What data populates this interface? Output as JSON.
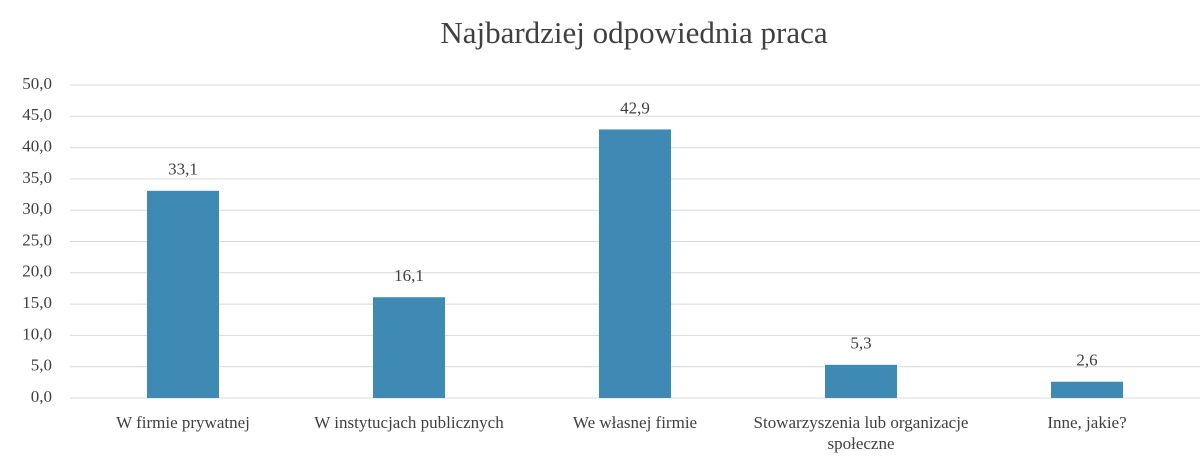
{
  "chart_data": {
    "type": "bar",
    "title": "Najbardziej odpowiednia praca",
    "categories": [
      "W firmie prywatnej",
      "W instytucjach publicznych",
      "We własnej firmie",
      "Stowarzyszenia lub organizacje społeczne",
      "Inne, jakie?"
    ],
    "values": [
      33.1,
      16.1,
      42.9,
      5.3,
      2.6
    ],
    "value_labels": [
      "33,1",
      "16,1",
      "42,9",
      "5,3",
      "2,6"
    ],
    "color": "#3f8ab5",
    "ylim": [
      0,
      50
    ],
    "yticks": [
      {
        "value": 0,
        "label": "0,0"
      },
      {
        "value": 5,
        "label": "5,0"
      },
      {
        "value": 10,
        "label": "10,0"
      },
      {
        "value": 15,
        "label": "15,0"
      },
      {
        "value": 20,
        "label": "20,0"
      },
      {
        "value": 25,
        "label": "25,0"
      },
      {
        "value": 30,
        "label": "30,0"
      },
      {
        "value": 35,
        "label": "35,0"
      },
      {
        "value": 40,
        "label": "40,0"
      },
      {
        "value": 45,
        "label": "45,0"
      },
      {
        "value": 50,
        "label": "50,0"
      }
    ],
    "grid": true
  }
}
